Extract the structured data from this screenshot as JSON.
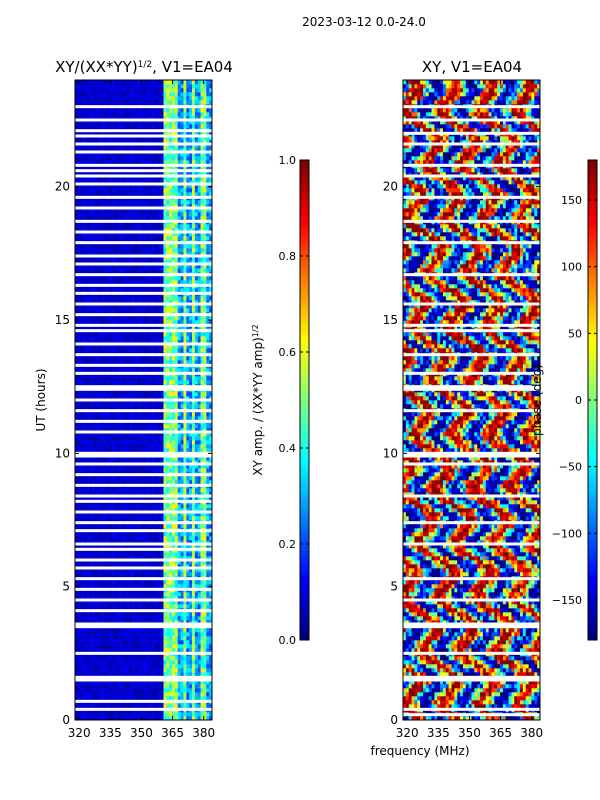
{
  "figure_title": "2023-03-12 0.0-24.0",
  "shared_xlabel": "frequency (MHz)",
  "colormap": [
    "#00007f",
    "#0000ff",
    "#007fff",
    "#00ffff",
    "#7fff7f",
    "#ffff00",
    "#ff7f00",
    "#ff0000",
    "#7f0000"
  ],
  "chart_data": [
    {
      "type": "heatmap",
      "title": "XY/(XX*YY)",
      "title_sup": "1/2",
      "title_suffix": ", V1=EA04",
      "xlabel": "",
      "ylabel": "UT (hours)",
      "xlim": [
        318,
        384
      ],
      "ylim": [
        0,
        24
      ],
      "xticks": [
        320,
        335,
        350,
        365,
        380
      ],
      "yticks": [
        0,
        5,
        10,
        15,
        20
      ],
      "colorbar": {
        "label": "XY amp. / (XX*YY amp)",
        "label_sup": "1/2",
        "vmin": 0.0,
        "vmax": 1.0,
        "ticks": [
          "0.0",
          "0.2",
          "0.4",
          "0.6",
          "0.8",
          "1.0"
        ],
        "tick_values": [
          0.0,
          0.2,
          0.4,
          0.6,
          0.8,
          1.0
        ]
      },
      "value_model": "low amplitude (~0.05) below 360 MHz; elevated 0.2-0.6 above 360 MHz",
      "bright_channels_mhz": [
        362,
        364,
        366,
        371,
        375,
        380
      ],
      "gap_hours": [
        0.4,
        0.7,
        1.5,
        1.6,
        2.5,
        3.5,
        3.6,
        4.1,
        4.5,
        4.9,
        5.3,
        5.7,
        6.0,
        6.4,
        6.6,
        7.1,
        7.4,
        7.8,
        8.2,
        8.4,
        8.8,
        9.2,
        9.6,
        9.9,
        10.0,
        10.8,
        11.2,
        11.6,
        12.0,
        12.4,
        12.5,
        13.0,
        13.3,
        13.7,
        14.1,
        14.6,
        14.8,
        15.2,
        15.6,
        16.0,
        16.3,
        16.7,
        17.1,
        17.4,
        17.9,
        18.3,
        18.7,
        19.2,
        19.6,
        20.1,
        20.4,
        20.6,
        20.8,
        21.3,
        21.6,
        21.9,
        22.1,
        22.5,
        23.0
      ]
    },
    {
      "type": "heatmap",
      "title": "XY, V1=EA04",
      "xlabel": "",
      "ylabel": "",
      "xlim": [
        318,
        384
      ],
      "ylim": [
        0,
        24
      ],
      "xticks": [
        320,
        335,
        350,
        365,
        380
      ],
      "yticks": [
        0,
        5,
        10,
        15,
        20
      ],
      "colorbar": {
        "label": "phase (deg)",
        "vmin": -180,
        "vmax": 180,
        "ticks": [
          "150",
          "100",
          "50",
          "0",
          "−50",
          "−100",
          "−150"
        ],
        "tick_values": [
          150,
          100,
          50,
          0,
          -50,
          -100,
          -150
        ]
      },
      "value_model": "phase wrapping across full range, striated in frequency and time",
      "gap_hours": [
        0.2,
        0.4,
        1.5,
        1.6,
        2.5,
        3.5,
        3.6,
        4.5,
        5.3,
        6.6,
        7.4,
        8.4,
        9.6,
        9.9,
        10.0,
        11.6,
        12.4,
        12.5,
        13.0,
        13.7,
        14.6,
        14.8,
        15.6,
        16.7,
        17.9,
        18.7,
        19.6,
        20.4,
        20.8,
        21.6,
        22.0,
        22.5,
        23.0
      ]
    }
  ]
}
